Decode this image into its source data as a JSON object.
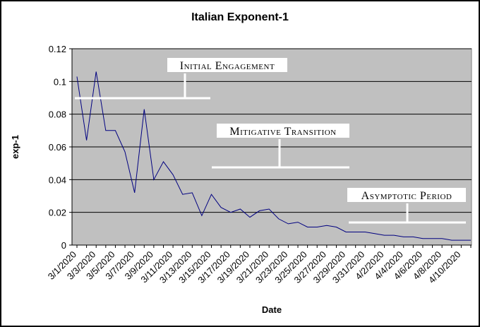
{
  "chart_data": {
    "type": "line",
    "title": "Italian Exponent-1",
    "xlabel": "Date",
    "ylabel": "exp-1",
    "ylim": [
      0,
      0.12
    ],
    "yticks": [
      "0",
      "0.02",
      "0.04",
      "0.06",
      "0.08",
      "0.1",
      "0.12"
    ],
    "grid": true,
    "x": [
      "3/1/2020",
      "3/2/2020",
      "3/3/2020",
      "3/4/2020",
      "3/5/2020",
      "3/6/2020",
      "3/7/2020",
      "3/8/2020",
      "3/9/2020",
      "3/10/2020",
      "3/11/2020",
      "3/12/2020",
      "3/13/2020",
      "3/14/2020",
      "3/15/2020",
      "3/16/2020",
      "3/17/2020",
      "3/18/2020",
      "3/19/2020",
      "3/20/2020",
      "3/21/2020",
      "3/22/2020",
      "3/23/2020",
      "3/24/2020",
      "3/25/2020",
      "3/26/2020",
      "3/27/2020",
      "3/28/2020",
      "3/29/2020",
      "3/30/2020",
      "3/31/2020",
      "4/1/2020",
      "4/2/2020",
      "4/3/2020",
      "4/4/2020",
      "4/5/2020",
      "4/6/2020",
      "4/7/2020",
      "4/8/2020",
      "4/9/2020",
      "4/10/2020",
      "4/11/2020"
    ],
    "xtick_labels": [
      "3/1/2020",
      "3/3/2020",
      "3/5/2020",
      "3/7/2020",
      "3/9/2020",
      "3/11/2020",
      "3/13/2020",
      "3/15/2020",
      "3/17/2020",
      "3/19/2020",
      "3/21/2020",
      "3/23/2020",
      "3/25/2020",
      "3/27/2020",
      "3/29/2020",
      "3/31/2020",
      "4/2/2020",
      "4/4/2020",
      "4/6/2020",
      "4/8/2020",
      "4/10/2020"
    ],
    "series": [
      {
        "color": "#000080",
        "values": [
          0.103,
          0.064,
          0.106,
          0.07,
          0.07,
          0.057,
          0.032,
          0.083,
          0.04,
          0.051,
          0.043,
          0.031,
          0.032,
          0.018,
          0.031,
          0.023,
          0.02,
          0.022,
          0.017,
          0.021,
          0.022,
          0.016,
          0.013,
          0.014,
          0.011,
          0.011,
          0.012,
          0.011,
          0.008,
          0.008,
          0.008,
          0.007,
          0.006,
          0.006,
          0.005,
          0.005,
          0.004,
          0.004,
          0.004,
          0.003,
          0.003,
          0.003
        ]
      }
    ],
    "annotations": [
      {
        "text": "Initial Engagement"
      },
      {
        "text": "Mitigative Transition"
      },
      {
        "text": "Asymptotic Period"
      }
    ],
    "colors": {
      "plot_background": "#c0c0c0",
      "gridline": "#000000",
      "line": "#000080"
    }
  }
}
